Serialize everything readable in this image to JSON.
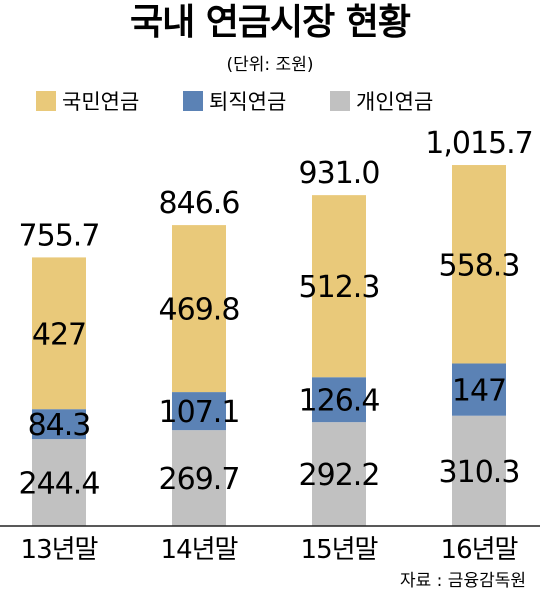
{
  "chart_data": {
    "type": "bar",
    "stacked": true,
    "title": "국내 연금시장 현황",
    "unit_note": "(단위: 조원)",
    "source": "자료 : 금융감독원",
    "categories": [
      "13년말",
      "14년말",
      "15년말",
      "16년말"
    ],
    "series": [
      {
        "name": "개인연금",
        "color": "#c1c1c1",
        "values": [
          244.4,
          269.7,
          292.2,
          310.3
        ],
        "labels": [
          "244.4",
          "269.7",
          "292.2",
          "310.3"
        ]
      },
      {
        "name": "퇴직연금",
        "color": "#5b82b5",
        "values": [
          84.3,
          107.1,
          126.4,
          147
        ],
        "labels": [
          "84.3",
          "107.1",
          "126.4",
          "147"
        ]
      },
      {
        "name": "국민연금",
        "color": "#e9c97a",
        "values": [
          427,
          469.8,
          512.3,
          558.3
        ],
        "labels": [
          "427",
          "469.8",
          "512.3",
          "558.3"
        ]
      }
    ],
    "legend_order": [
      "국민연금",
      "퇴직연금",
      "개인연금"
    ],
    "totals": [
      755.7,
      846.6,
      931.0,
      1015.7
    ],
    "total_labels": [
      "755.7",
      "846.6",
      "931.0",
      "1,015.7"
    ],
    "ylim": [
      0,
      1015.7
    ],
    "grid": false,
    "legend_position": "top-left"
  }
}
